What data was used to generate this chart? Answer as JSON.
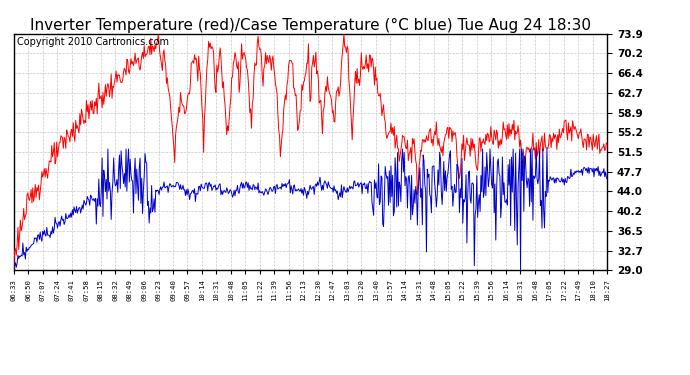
{
  "title": "Inverter Temperature (red)/Case Temperature (°C blue) Tue Aug 24 18:30",
  "copyright": "Copyright 2010 Cartronics.com",
  "yticks": [
    29.0,
    32.7,
    36.5,
    40.2,
    44.0,
    47.7,
    51.5,
    55.2,
    58.9,
    62.7,
    66.4,
    70.2,
    73.9
  ],
  "ymin": 29.0,
  "ymax": 73.9,
  "x_labels": [
    "06:33",
    "06:50",
    "07:07",
    "07:24",
    "07:41",
    "07:58",
    "08:15",
    "08:32",
    "08:49",
    "09:06",
    "09:23",
    "09:40",
    "09:57",
    "10:14",
    "10:31",
    "10:48",
    "11:05",
    "11:22",
    "11:39",
    "11:56",
    "12:13",
    "12:30",
    "12:47",
    "13:03",
    "13:20",
    "13:40",
    "13:57",
    "14:14",
    "14:31",
    "14:48",
    "15:05",
    "15:22",
    "15:39",
    "15:56",
    "16:14",
    "16:31",
    "16:48",
    "17:05",
    "17:22",
    "17:49",
    "18:10",
    "18:27"
  ],
  "red_color": "#ff0000",
  "blue_color": "#0000cc",
  "bg_color": "#ffffff",
  "grid_color": "#c8c8c8",
  "title_fontsize": 11,
  "copyright_fontsize": 7
}
